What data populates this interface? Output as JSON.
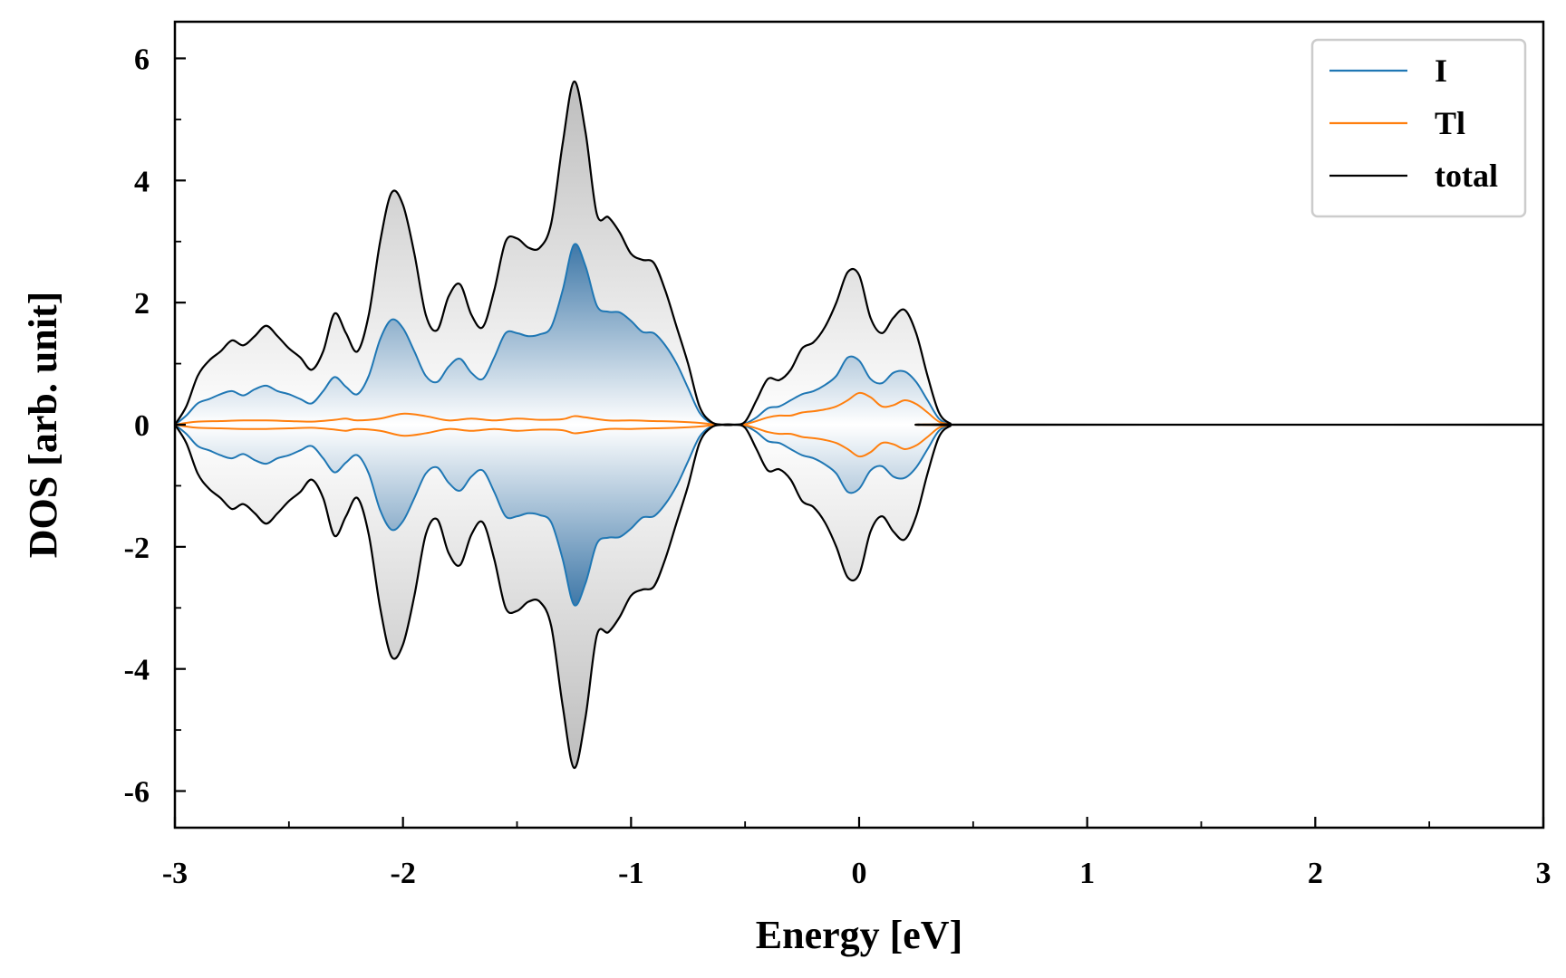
{
  "chart_data": {
    "type": "area",
    "xlabel": "Energy [eV]",
    "ylabel": "DOS [arb. unit]",
    "xlim": [
      -3,
      3
    ],
    "ylim": [
      -6.6,
      6.6
    ],
    "xticks": [
      -3,
      -2,
      -1,
      0,
      1,
      2,
      3
    ],
    "xtick_labels": [
      "-3",
      "-2",
      "-1",
      "0",
      "1",
      "2",
      "3"
    ],
    "yticks": [
      -6,
      -4,
      -2,
      0,
      2,
      4,
      6
    ],
    "ytick_labels": [
      "-6",
      "-4",
      "-2",
      "0",
      "2",
      "4",
      "6"
    ],
    "grid": false,
    "legend_position": "top-right",
    "mirrored": true,
    "series": [
      {
        "name": "I",
        "color": "#1f77b4",
        "x": [
          -3.0,
          -2.95,
          -2.9,
          -2.85,
          -2.8,
          -2.75,
          -2.7,
          -2.65,
          -2.6,
          -2.55,
          -2.5,
          -2.45,
          -2.4,
          -2.35,
          -2.3,
          -2.25,
          -2.2,
          -2.15,
          -2.1,
          -2.05,
          -2.0,
          -1.95,
          -1.9,
          -1.85,
          -1.8,
          -1.75,
          -1.7,
          -1.65,
          -1.6,
          -1.55,
          -1.5,
          -1.45,
          -1.4,
          -1.35,
          -1.3,
          -1.25,
          -1.2,
          -1.15,
          -1.1,
          -1.05,
          -1.0,
          -0.95,
          -0.9,
          -0.85,
          -0.8,
          -0.75,
          -0.7,
          -0.65,
          -0.6,
          -0.55,
          -0.5,
          -0.45,
          -0.4,
          -0.35,
          -0.3,
          -0.25,
          -0.2,
          -0.15,
          -0.1,
          -0.05,
          0.0,
          0.05,
          0.1,
          0.15,
          0.2,
          0.25,
          0.3,
          0.35,
          0.4,
          0.45,
          3.0
        ],
        "y": [
          0.0,
          0.15,
          0.35,
          0.42,
          0.5,
          0.55,
          0.48,
          0.58,
          0.64,
          0.55,
          0.5,
          0.42,
          0.35,
          0.55,
          0.78,
          0.62,
          0.5,
          0.8,
          1.4,
          1.72,
          1.58,
          1.2,
          0.8,
          0.7,
          0.95,
          1.08,
          0.85,
          0.75,
          1.1,
          1.5,
          1.5,
          1.45,
          1.48,
          1.6,
          2.2,
          2.95,
          2.6,
          1.95,
          1.85,
          1.84,
          1.7,
          1.52,
          1.5,
          1.3,
          1.0,
          0.6,
          0.2,
          0.03,
          0.0,
          0.0,
          0.02,
          0.12,
          0.27,
          0.3,
          0.4,
          0.5,
          0.55,
          0.65,
          0.8,
          1.1,
          1.05,
          0.75,
          0.68,
          0.85,
          0.87,
          0.7,
          0.4,
          0.1,
          0.01,
          0.0,
          0.0
        ]
      },
      {
        "name": "Tl",
        "color": "#ff7f0e",
        "x": [
          -3.0,
          -2.95,
          -2.9,
          -2.8,
          -2.7,
          -2.6,
          -2.5,
          -2.4,
          -2.3,
          -2.25,
          -2.2,
          -2.1,
          -2.0,
          -1.9,
          -1.8,
          -1.7,
          -1.6,
          -1.5,
          -1.4,
          -1.3,
          -1.25,
          -1.2,
          -1.1,
          -1.0,
          -0.9,
          -0.8,
          -0.7,
          -0.65,
          -0.6,
          -0.55,
          -0.5,
          -0.45,
          -0.4,
          -0.35,
          -0.3,
          -0.25,
          -0.2,
          -0.15,
          -0.1,
          -0.05,
          0.0,
          0.05,
          0.1,
          0.15,
          0.2,
          0.25,
          0.3,
          0.35,
          0.4,
          0.45,
          3.0
        ],
        "y": [
          0.0,
          0.03,
          0.05,
          0.06,
          0.07,
          0.07,
          0.06,
          0.05,
          0.08,
          0.1,
          0.07,
          0.1,
          0.18,
          0.14,
          0.07,
          0.1,
          0.07,
          0.1,
          0.08,
          0.09,
          0.14,
          0.12,
          0.07,
          0.07,
          0.06,
          0.05,
          0.03,
          0.01,
          0.0,
          0.0,
          0.01,
          0.06,
          0.12,
          0.15,
          0.15,
          0.2,
          0.22,
          0.25,
          0.3,
          0.4,
          0.52,
          0.45,
          0.3,
          0.32,
          0.4,
          0.34,
          0.2,
          0.05,
          0.01,
          0.0,
          0.0
        ]
      },
      {
        "name": "total",
        "color": "#000000",
        "x": [
          -3.0,
          -2.95,
          -2.9,
          -2.85,
          -2.8,
          -2.75,
          -2.7,
          -2.65,
          -2.6,
          -2.55,
          -2.5,
          -2.45,
          -2.4,
          -2.35,
          -2.3,
          -2.25,
          -2.2,
          -2.15,
          -2.1,
          -2.05,
          -2.0,
          -1.95,
          -1.9,
          -1.85,
          -1.8,
          -1.75,
          -1.7,
          -1.65,
          -1.6,
          -1.55,
          -1.5,
          -1.45,
          -1.4,
          -1.35,
          -1.3,
          -1.25,
          -1.2,
          -1.15,
          -1.1,
          -1.05,
          -1.0,
          -0.95,
          -0.9,
          -0.85,
          -0.8,
          -0.75,
          -0.7,
          -0.65,
          -0.6,
          -0.55,
          -0.5,
          -0.45,
          -0.4,
          -0.35,
          -0.3,
          -0.25,
          -0.2,
          -0.15,
          -0.1,
          -0.05,
          0.0,
          0.05,
          0.1,
          0.15,
          0.2,
          0.25,
          0.3,
          0.35,
          0.4,
          0.45,
          3.0
        ],
        "y": [
          0.0,
          0.3,
          0.8,
          1.05,
          1.2,
          1.38,
          1.3,
          1.45,
          1.62,
          1.45,
          1.25,
          1.1,
          0.9,
          1.2,
          1.82,
          1.5,
          1.2,
          1.8,
          3.0,
          3.8,
          3.6,
          2.8,
          1.8,
          1.55,
          2.1,
          2.3,
          1.8,
          1.6,
          2.2,
          3.0,
          3.05,
          2.9,
          2.9,
          3.3,
          4.6,
          5.62,
          4.8,
          3.45,
          3.4,
          3.15,
          2.8,
          2.7,
          2.65,
          2.2,
          1.6,
          1.0,
          0.3,
          0.05,
          0.0,
          0.0,
          0.05,
          0.4,
          0.75,
          0.73,
          0.9,
          1.25,
          1.35,
          1.6,
          2.0,
          2.5,
          2.45,
          1.75,
          1.5,
          1.75,
          1.88,
          1.5,
          0.8,
          0.2,
          0.02,
          0.0,
          0.0
        ]
      }
    ]
  }
}
